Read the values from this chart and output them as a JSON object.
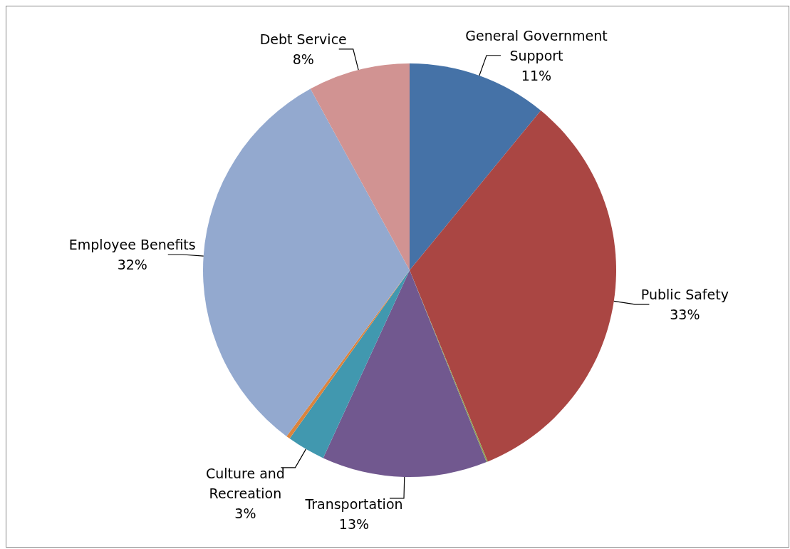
{
  "chart_data": {
    "type": "pie",
    "categories": [
      "General Government Support",
      "Public Safety",
      null,
      "Transportation",
      "Culture and Recreation",
      null,
      "Employee Benefits",
      "Debt Service"
    ],
    "values": [
      11,
      33,
      0.1,
      13,
      3,
      0.3,
      32,
      8
    ],
    "value_labels": [
      "11%",
      "33%",
      null,
      "13%",
      "3%",
      null,
      "32%",
      "8%"
    ],
    "colors": [
      "#4572a7",
      "#aa4643",
      "#89a54e",
      "#71588f",
      "#4198af",
      "#db843d",
      "#93a9cf",
      "#d19392"
    ]
  }
}
